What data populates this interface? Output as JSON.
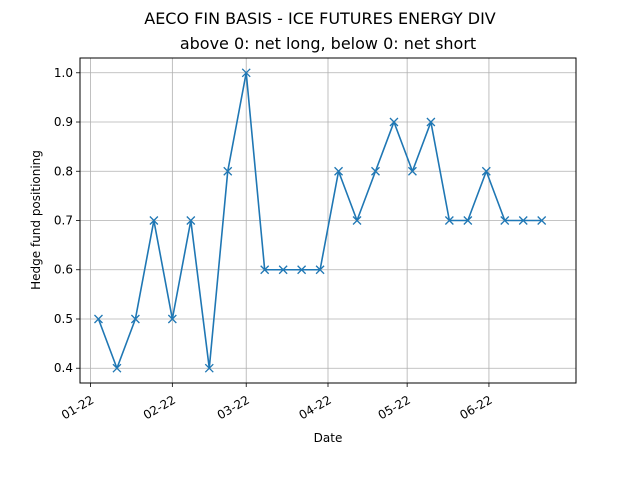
{
  "chart_data": {
    "type": "line",
    "title": "AECO FIN BASIS - ICE FUTURES ENERGY DIV",
    "subtitle": "above 0: net long, below 0: net short",
    "xlabel": "Date",
    "ylabel": "Hedge fund positioning",
    "x_ticks": [
      {
        "date": "2022-01-01",
        "label": "01-22"
      },
      {
        "date": "2022-02-01",
        "label": "02-22"
      },
      {
        "date": "2022-03-01",
        "label": "03-22"
      },
      {
        "date": "2022-04-01",
        "label": "04-22"
      },
      {
        "date": "2022-05-01",
        "label": "05-22"
      },
      {
        "date": "2022-06-01",
        "label": "06-22"
      }
    ],
    "y_ticks": [
      0.4,
      0.5,
      0.6,
      0.7,
      0.8,
      0.9,
      1.0
    ],
    "y_tick_labels": [
      "0.4",
      "0.5",
      "0.6",
      "0.7",
      "0.8",
      "0.9",
      "1.0"
    ],
    "xlim": [
      "2021-12-28",
      "2022-07-04"
    ],
    "ylim": [
      0.37,
      1.03
    ],
    "grid": true,
    "series": [
      {
        "color": "#1f77b4",
        "marker": "x",
        "points": [
          {
            "x": "2022-01-04",
            "y": 0.5
          },
          {
            "x": "2022-01-11",
            "y": 0.4
          },
          {
            "x": "2022-01-18",
            "y": 0.5
          },
          {
            "x": "2022-01-25",
            "y": 0.7
          },
          {
            "x": "2022-02-01",
            "y": 0.5
          },
          {
            "x": "2022-02-08",
            "y": 0.7
          },
          {
            "x": "2022-02-15",
            "y": 0.4
          },
          {
            "x": "2022-02-22",
            "y": 0.8
          },
          {
            "x": "2022-03-01",
            "y": 1.0
          },
          {
            "x": "2022-03-08",
            "y": 0.6
          },
          {
            "x": "2022-03-15",
            "y": 0.6
          },
          {
            "x": "2022-03-22",
            "y": 0.6
          },
          {
            "x": "2022-03-29",
            "y": 0.6
          },
          {
            "x": "2022-04-05",
            "y": 0.8
          },
          {
            "x": "2022-04-12",
            "y": 0.7
          },
          {
            "x": "2022-04-19",
            "y": 0.8
          },
          {
            "x": "2022-04-26",
            "y": 0.9
          },
          {
            "x": "2022-05-03",
            "y": 0.8
          },
          {
            "x": "2022-05-10",
            "y": 0.9
          },
          {
            "x": "2022-05-17",
            "y": 0.7
          },
          {
            "x": "2022-05-24",
            "y": 0.7
          },
          {
            "x": "2022-05-31",
            "y": 0.8
          },
          {
            "x": "2022-06-07",
            "y": 0.7
          },
          {
            "x": "2022-06-14",
            "y": 0.7
          },
          {
            "x": "2022-06-21",
            "y": 0.7
          }
        ]
      }
    ]
  }
}
